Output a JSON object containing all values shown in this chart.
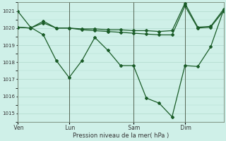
{
  "background_color": "#cff0e8",
  "grid_color": "#b0d8cc",
  "line_color": "#1a5c28",
  "xlabel": "Pression niveau de la mer( hPa )",
  "ylim": [
    1014.5,
    1021.5
  ],
  "yticks": [
    1015,
    1016,
    1017,
    1018,
    1019,
    1020,
    1021
  ],
  "xlim": [
    0,
    8.0
  ],
  "day_labels": [
    " Ven",
    " Lun",
    " Sam",
    " Dim"
  ],
  "day_positions": [
    0.0,
    2.0,
    4.5,
    6.5
  ],
  "vlines_x": [
    0.0,
    2.0,
    4.5,
    6.5
  ],
  "series_flat1": {
    "x": [
      0.0,
      0.5,
      1.0,
      1.5,
      2.0,
      2.5,
      3.0,
      3.5,
      4.0,
      4.5,
      5.0,
      5.5,
      6.0,
      6.5,
      7.0,
      7.5,
      8.0
    ],
    "y": [
      1020.05,
      1020.0,
      1020.4,
      1020.0,
      1020.0,
      1019.95,
      1019.95,
      1019.9,
      1019.9,
      1019.85,
      1019.85,
      1019.8,
      1019.85,
      1021.45,
      1020.05,
      1020.1,
      1021.1
    ]
  },
  "series_flat2": {
    "x": [
      0.0,
      0.5,
      1.0,
      1.5,
      2.0,
      2.5,
      3.0,
      3.5,
      4.0,
      4.5,
      5.0,
      5.5,
      6.0,
      6.5,
      7.0,
      7.5,
      8.0
    ],
    "y": [
      1020.05,
      1020.0,
      1020.3,
      1020.0,
      1020.0,
      1019.9,
      1019.85,
      1019.8,
      1019.75,
      1019.7,
      1019.65,
      1019.6,
      1019.6,
      1021.3,
      1020.0,
      1020.05,
      1021.0
    ]
  },
  "series_deep": {
    "x": [
      0.0,
      0.5,
      1.0,
      1.5,
      2.0,
      2.5,
      3.0,
      3.5,
      4.0,
      4.5,
      5.0,
      5.5,
      6.0,
      6.5,
      7.0,
      7.5,
      8.0
    ],
    "y": [
      1021.0,
      1020.05,
      1019.6,
      1018.1,
      1017.1,
      1018.1,
      1019.45,
      1018.7,
      1017.8,
      1017.8,
      1015.9,
      1015.6,
      1014.8,
      1017.8,
      1017.75,
      1018.9,
      1021.05
    ]
  }
}
